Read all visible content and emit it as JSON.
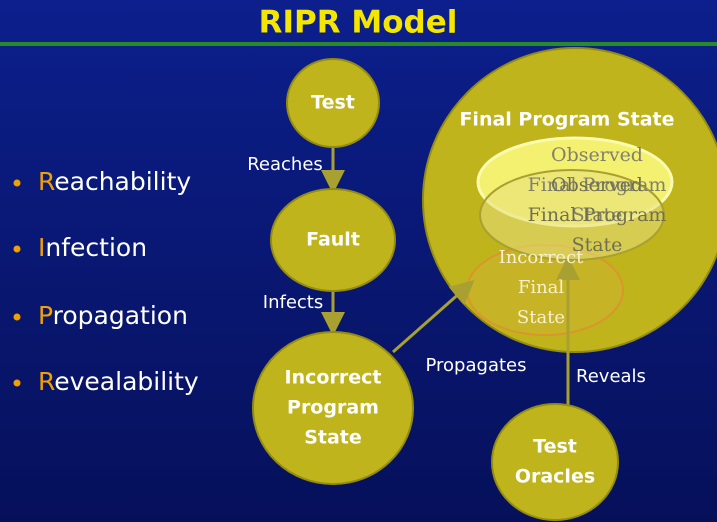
{
  "title": "RIPR Model",
  "bullets": [
    {
      "initial": "R",
      "rest": "eachability"
    },
    {
      "initial": "I",
      "rest": "nfection"
    },
    {
      "initial": "P",
      "rest": "ropagation"
    },
    {
      "initial": "R",
      "rest": "evealability"
    }
  ],
  "nodes": [
    {
      "lines": [
        "Test"
      ]
    },
    {
      "lines": [
        "Fault"
      ]
    },
    {
      "lines": [
        "Incorrect",
        "Program",
        "State"
      ]
    },
    {
      "lines": [
        "Test",
        "Oracles"
      ]
    }
  ],
  "edges": [
    "Reaches",
    "Infects",
    "Propagates",
    "Reveals"
  ],
  "final_state": {
    "label": "Final Program State",
    "observed": [
      {
        "lines": [
          "Observed",
          "Final Program",
          "State"
        ]
      },
      {
        "lines": [
          "Observed",
          "Final Program",
          "State"
        ]
      }
    ],
    "incorrect": {
      "lines": [
        "Incorrect",
        "Final",
        "State"
      ]
    }
  }
}
